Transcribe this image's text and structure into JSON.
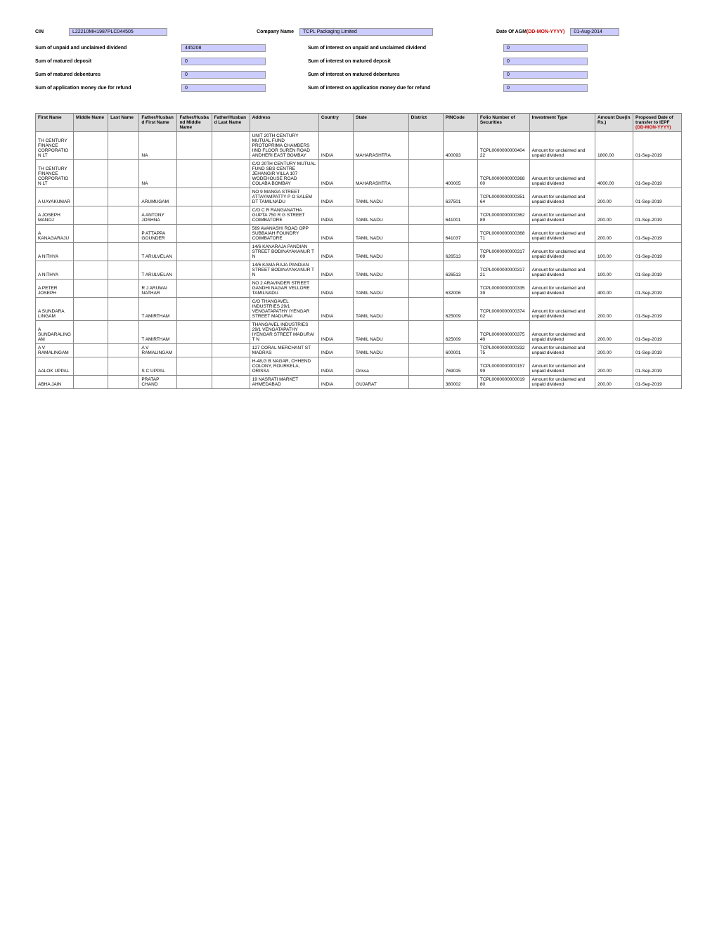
{
  "header": {
    "cin_label": "CIN",
    "cin_value": "L22210MH1987PLC044505",
    "company_label": "Company Name",
    "company_value": "TCPL Packaging Limited",
    "agm_label": "Date Of AGM",
    "agm_hint": "(DD-MON-YYYY)",
    "agm_value": "01-Aug-2014",
    "sum_unpaid_label": "Sum of unpaid and unclaimed dividend",
    "sum_unpaid_value": "445208",
    "sum_int_unpaid_label": "Sum of interest on unpaid and unclaimed dividend",
    "sum_int_unpaid_value": "0",
    "sum_mat_dep_label": "Sum of matured deposit",
    "sum_mat_dep_value": "0",
    "sum_int_mat_dep_label": "Sum of interest on matured deposit",
    "sum_int_mat_dep_value": "0",
    "sum_mat_deb_label": "Sum of matured debentures",
    "sum_mat_deb_value": "0",
    "sum_int_mat_deb_label": "Sum of interest on matured debentures",
    "sum_int_mat_deb_value": "0",
    "sum_app_label": "Sum of application money due for refund",
    "sum_app_value": "0",
    "sum_int_app_label": "Sum of interest on application money due for refund",
    "sum_int_app_value": "0"
  },
  "columns": {
    "c0": "First Name",
    "c1": "Middle Name",
    "c2": "Last Name",
    "c3": "Father/Husband First Name",
    "c4": "Father/Husband Middle Name",
    "c5": "Father/Husband Last Name",
    "c6": "Address",
    "c7": "Country",
    "c8": "State",
    "c9": "District",
    "c10": "PINCode",
    "c11": "Folio Number of Securities",
    "c12": "Investment Type",
    "c13": "Amount Due(in Rs.)",
    "c14a": "Proposed Date of transfer to IEPF",
    "c14b": "(DD-MON-YYYY)"
  },
  "rows": [
    {
      "fn": "TH CENTURY FINANCE CORPORATION LT",
      "mn": "",
      "ln": "",
      "ffn": "NA",
      "fmn": "",
      "fln": "",
      "addr": "UNIT 20TH CENTURY MUTUAL FUND PROTOPRIMA CHAMBERS IIND FLOOR SUREN ROAD ANDHERI EAST BOMBAY",
      "ctry": "INDIA",
      "st": "MAHARASHTRA",
      "dist": "",
      "pin": "400093",
      "folio": "TCPL000000000040422",
      "inv": "Amount for unclaimed and unpaid dividend",
      "amt": "1800.00",
      "dt": "01-Sep-2019"
    },
    {
      "fn": "TH CENTURY FINANCE CORPORATION LT",
      "mn": "",
      "ln": "",
      "ffn": "NA",
      "fmn": "",
      "fln": "",
      "addr": "C/O 20TH CENTURY MUTUAL FUND SBS CENTRE JEHANGIR VILLA 107 WODEHOUSE ROAD COLABA BOMBAY",
      "ctry": "INDIA",
      "st": "MAHARASHTRA",
      "dist": "",
      "pin": "400005",
      "folio": "TCPL000000000036800",
      "inv": "Amount for unclaimed and unpaid dividend",
      "amt": "4000.00",
      "dt": "01-Sep-2019"
    },
    {
      "fn": "A UAYAKUMAR",
      "mn": "",
      "ln": "",
      "ffn": "ARUMUGAM",
      "fmn": "",
      "fln": "",
      "addr": "NO 9 MANGA STREET ATTAYAMPATTY P O SALEM DT TAMILNADU",
      "ctry": "INDIA",
      "st": "TAMIL NADU",
      "dist": "",
      "pin": "637501",
      "folio": "TCPL000000000035164",
      "inv": "Amount for unclaimed and unpaid dividend",
      "amt": "200.00",
      "dt": "01-Sep-2019"
    },
    {
      "fn": "A JOSEPH MANOJ",
      "mn": "",
      "ln": "",
      "ffn": "A ANTONY JOSHNA",
      "fmn": "",
      "fln": "",
      "addr": "C/O C R RANGANATHA GUPTA 750 R G STREET COIMBATORE",
      "ctry": "INDIA",
      "st": "TAMIL NADU",
      "dist": "",
      "pin": "641001",
      "folio": "TCPL000000000036289",
      "inv": "Amount for unclaimed and unpaid dividend",
      "amt": "200.00",
      "dt": "01-Sep-2019"
    },
    {
      "fn": "A KANAGARAJU",
      "mn": "",
      "ln": "",
      "ffn": "P ATTAPPA GOUNDER",
      "fmn": "",
      "fln": "",
      "addr": "569 AVANASHI ROAD OPP SUBBAIAH FOUNDRY COIMBATORE",
      "ctry": "INDIA",
      "st": "TAMIL NADU",
      "dist": "",
      "pin": "641037",
      "folio": "TCPL000000000036871",
      "inv": "Amount for unclaimed and unpaid dividend",
      "amt": "200.00",
      "dt": "01-Sep-2019"
    },
    {
      "fn": "A NITHYA",
      "mn": "",
      "ln": "",
      "ffn": "T ARULVELAN",
      "fmn": "",
      "fln": "",
      "addr": "14/6 KANARAJA PANDIAN STREET BODINAYAKANUR T N",
      "ctry": "INDIA",
      "st": "TAMIL NADU",
      "dist": "",
      "pin": "626513",
      "folio": "TCPL000000000031709",
      "inv": "Amount for unclaimed and unpaid dividend",
      "amt": "100.00",
      "dt": "01-Sep-2019"
    },
    {
      "fn": "A NITHYA",
      "mn": "",
      "ln": "",
      "ffn": "T ARULVELAN",
      "fmn": "",
      "fln": "",
      "addr": "14/6 KAMA RAJA PANDIAN STREET BODINAYAKANUR T N",
      "ctry": "INDIA",
      "st": "TAMIL NADU",
      "dist": "",
      "pin": "626513",
      "folio": "TCPL000000000031721",
      "inv": "Amount for unclaimed and unpaid dividend",
      "amt": "100.00",
      "dt": "01-Sep-2019"
    },
    {
      "fn": "A PETER JOSEPH",
      "mn": "",
      "ln": "",
      "ffn": "R J ARUMAI NATHAR",
      "fmn": "",
      "fln": "",
      "addr": "NO 2 ARAVINDER STREET GANDHI NAGAR VELLORE TAMILNADU",
      "ctry": "INDIA",
      "st": "TAMIL NADU",
      "dist": "",
      "pin": "632006",
      "folio": "TCPL000000000033539",
      "inv": "Amount for unclaimed and unpaid dividend",
      "amt": "400.00",
      "dt": "01-Sep-2019"
    },
    {
      "fn": "A SUNDARA LINGAM",
      "mn": "",
      "ln": "",
      "ffn": "T AMIRTHAM",
      "fmn": "",
      "fln": "",
      "addr": "C/O THANGAVEL INDUSTRIES 29/1 VENGATAPATHY IYENGAR STREET MADURAI",
      "ctry": "INDIA",
      "st": "TAMIL NADU",
      "dist": "",
      "pin": "625009",
      "folio": "TCPL000000000037402",
      "inv": "Amount for unclaimed and unpaid dividend",
      "amt": "200.00",
      "dt": "01-Sep-2019"
    },
    {
      "fn": "A SUNDARALINGAM",
      "mn": "",
      "ln": "",
      "ffn": "T AMIRTHAM",
      "fmn": "",
      "fln": "",
      "addr": "THANGAVEL INDUSTRIES 29/1 VENGATAPATHY IYENGAR STREET MADURAI T N",
      "ctry": "INDIA",
      "st": "TAMIL NADU",
      "dist": "",
      "pin": "625009",
      "folio": "TCPL000000000037540",
      "inv": "Amount for unclaimed and unpaid dividend",
      "amt": "200.00",
      "dt": "01-Sep-2019"
    },
    {
      "fn": "A V RAMALINGAM",
      "mn": "",
      "ln": "",
      "ffn": "A V RAMALINGAM",
      "fmn": "",
      "fln": "",
      "addr": "127 CORAL MERCHANT ST MADRAS",
      "ctry": "INDIA",
      "st": "TAMIL NADU",
      "dist": "",
      "pin": "600001",
      "folio": "TCPL000000000033275",
      "inv": "Amount for unclaimed and unpaid dividend",
      "amt": "200.00",
      "dt": "01-Sep-2019"
    },
    {
      "fn": "AALOK UPPAL",
      "mn": "",
      "ln": "",
      "ffn": "S C UPPAL",
      "fmn": "",
      "fln": "",
      "addr": "H-48,G B NAGAR, CHHEND COLONY, ROURKELA, ORISSA",
      "ctry": "INDIA",
      "st": "Orissa",
      "dist": "",
      "pin": "769015",
      "folio": "TCPL000000000015799",
      "inv": "Amount for unclaimed and unpaid dividend",
      "amt": "200.00",
      "dt": "01-Sep-2019"
    },
    {
      "fn": "ABHA JAIN",
      "mn": "",
      "ln": "",
      "ffn": "PRATAP CHAND",
      "fmn": "",
      "fln": "",
      "addr": "19 NASRATI MARKET AHMEDABAD",
      "ctry": "INDIA",
      "st": "GUJARAT",
      "dist": "",
      "pin": "380002",
      "folio": "TCPL000000000001980",
      "inv": "Amount for unclaimed and unpaid dividend",
      "amt": "200.00",
      "dt": "01-Sep-2019"
    }
  ]
}
